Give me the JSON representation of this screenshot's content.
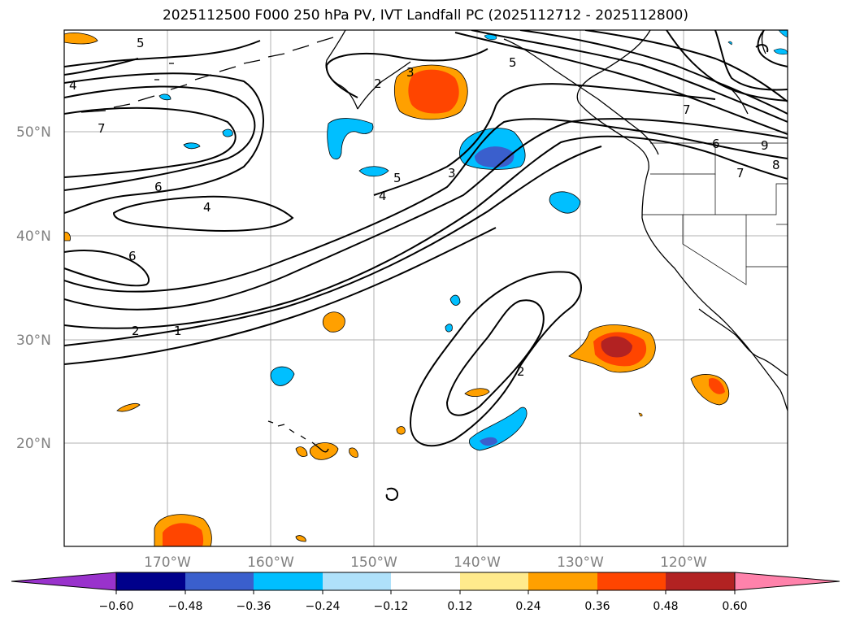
{
  "title": "2025112500 F000 250 hPa PV, IVT Landfall PC (2025112712 - 2025112800)",
  "lat_labels": [
    "50°N",
    "40°N",
    "30°N",
    "20°N"
  ],
  "lon_labels": [
    "170°W",
    "160°W",
    "150°W",
    "140°W",
    "130°W",
    "120°W"
  ],
  "contour_labels": [
    "5",
    "4",
    "7",
    "6",
    "4",
    "6",
    "2",
    "1",
    "2",
    "3",
    "5",
    "4",
    "3",
    "5",
    "7",
    "6",
    "7",
    "8",
    "9",
    "2"
  ],
  "colorbar": {
    "ticks": [
      "−0.60",
      "−0.48",
      "−0.36",
      "−0.24",
      "−0.12",
      "0.12",
      "0.24",
      "0.36",
      "0.48",
      "0.60"
    ],
    "colors": [
      "#9932cc",
      "#00008b",
      "#3a5fcd",
      "#00bfff",
      "#afe1fa",
      "#ffffff",
      "#ffea8c",
      "#ffa000",
      "#ff4500",
      "#b22222",
      "#ff82ab"
    ]
  },
  "map_colors": {
    "pos_low": "#ffa000",
    "pos_mid": "#ff4500",
    "pos_high": "#b22222",
    "neg_low": "#00bfff",
    "neg_mid": "#3a5fcd"
  }
}
